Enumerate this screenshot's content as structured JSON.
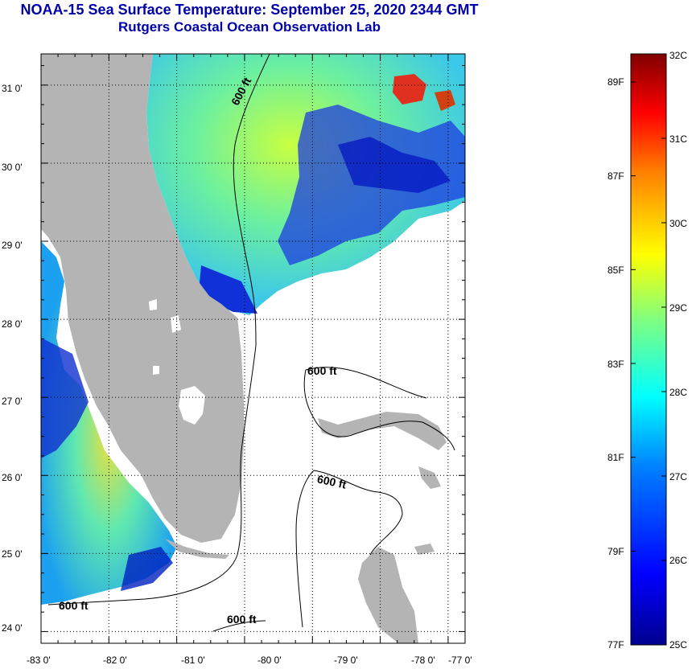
{
  "title": {
    "line1": "NOAA-15 Sea Surface Temperature:  September 25, 2020 2344 GMT",
    "line2": "Rutgers Coastal Ocean Observation Lab"
  },
  "map": {
    "lat_labels": [
      "31 0'",
      "30 0'",
      "29 0'",
      "28 0'",
      "27 0'",
      "26 0'",
      "25 0'",
      "24 0'"
    ],
    "lon_labels": [
      "-83 0'",
      "-82 0'",
      "-81 0'",
      "-80 0'",
      "-79 0'",
      "-78 0'",
      "-77 0'"
    ],
    "lat_range": [
      23.85,
      31.4
    ],
    "lon_range": [
      -83.0,
      -76.75
    ],
    "isobath_label": "600 ft",
    "colors": {
      "land": "#b4b4b4",
      "cloud": "#ffffff",
      "isobath": "#000000",
      "grid": "#000000"
    }
  },
  "colorbar": {
    "celsius_labels": [
      "32C",
      "31C",
      "30C",
      "29C",
      "28C",
      "27C",
      "26C",
      "25C"
    ],
    "fahrenheit_labels": [
      "89F",
      "87F",
      "85F",
      "83F",
      "81F",
      "79F",
      "77F"
    ],
    "range_c": [
      25,
      32
    ],
    "stops": [
      "#00008f",
      "#0000ff",
      "#0080ff",
      "#00ffff",
      "#80ff80",
      "#ffff00",
      "#ff8000",
      "#ff0000",
      "#800000"
    ]
  }
}
